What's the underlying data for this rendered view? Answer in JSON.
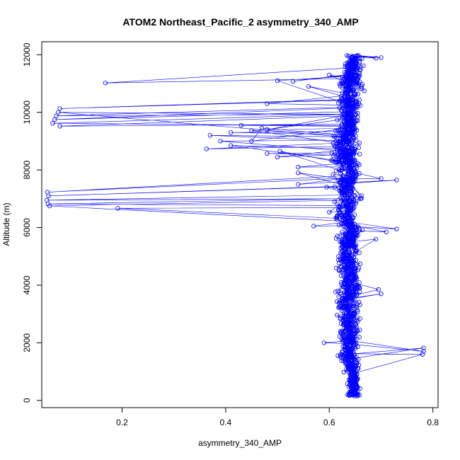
{
  "chart_data": {
    "type": "scatter",
    "title": "ATOM2 Northeast_Pacific_2 asymmetry_340_AMP",
    "xlabel": "asymmetry_340_AMP",
    "ylabel": "Altitude (m)",
    "xlim": [
      0.045,
      0.81
    ],
    "ylim": [
      -250,
      12450
    ],
    "xticks": [
      0.2,
      0.4,
      0.6,
      0.8
    ],
    "xtick_labels": [
      "0.2",
      "0.4",
      "0.6",
      "0.8"
    ],
    "yticks": [
      0,
      2000,
      4000,
      6000,
      8000,
      10000,
      12000
    ],
    "ytick_labels": [
      "0",
      "2000",
      "4000",
      "6000",
      "8000",
      "10000",
      "12000"
    ],
    "grid": false,
    "legend": "none",
    "series_color": "#0000ff",
    "marker": "open-circle",
    "connected": true,
    "outliers": [
      {
        "x": 0.168,
        "y": 11020
      },
      {
        "x": 0.5,
        "y": 11100
      },
      {
        "x": 0.53,
        "y": 11080
      },
      {
        "x": 0.08,
        "y": 10130
      },
      {
        "x": 0.077,
        "y": 10000
      },
      {
        "x": 0.073,
        "y": 9880
      },
      {
        "x": 0.07,
        "y": 9750
      },
      {
        "x": 0.066,
        "y": 9620
      },
      {
        "x": 0.08,
        "y": 9520
      },
      {
        "x": 0.43,
        "y": 9550
      },
      {
        "x": 0.47,
        "y": 9450
      },
      {
        "x": 0.48,
        "y": 9400
      },
      {
        "x": 0.41,
        "y": 9300
      },
      {
        "x": 0.45,
        "y": 9370
      },
      {
        "x": 0.37,
        "y": 9200
      },
      {
        "x": 0.39,
        "y": 9000
      },
      {
        "x": 0.45,
        "y": 9000
      },
      {
        "x": 0.41,
        "y": 8850
      },
      {
        "x": 0.363,
        "y": 8730
      },
      {
        "x": 0.48,
        "y": 8570
      },
      {
        "x": 0.505,
        "y": 8650
      },
      {
        "x": 0.5,
        "y": 8450
      },
      {
        "x": 0.48,
        "y": 10300
      },
      {
        "x": 0.54,
        "y": 8100
      },
      {
        "x": 0.54,
        "y": 7900
      },
      {
        "x": 0.54,
        "y": 7500
      },
      {
        "x": 0.056,
        "y": 7230
      },
      {
        "x": 0.058,
        "y": 7100
      },
      {
        "x": 0.055,
        "y": 6950
      },
      {
        "x": 0.057,
        "y": 6820
      },
      {
        "x": 0.06,
        "y": 6750
      },
      {
        "x": 0.192,
        "y": 6670
      },
      {
        "x": 0.57,
        "y": 6050
      },
      {
        "x": 0.73,
        "y": 5950
      },
      {
        "x": 0.71,
        "y": 5850
      },
      {
        "x": 0.69,
        "y": 5600
      },
      {
        "x": 0.7,
        "y": 3700
      },
      {
        "x": 0.695,
        "y": 3850
      },
      {
        "x": 0.782,
        "y": 1820
      },
      {
        "x": 0.782,
        "y": 1700
      },
      {
        "x": 0.78,
        "y": 1600
      },
      {
        "x": 0.59,
        "y": 2000
      },
      {
        "x": 0.73,
        "y": 7650
      },
      {
        "x": 0.7,
        "y": 7700
      },
      {
        "x": 0.7,
        "y": 11900
      },
      {
        "x": 0.69,
        "y": 11880
      },
      {
        "x": 0.6,
        "y": 11300
      },
      {
        "x": 0.56,
        "y": 10900
      }
    ],
    "dense_profile": {
      "description_levels": [
        {
          "y": 200,
          "x_mean": 0.645,
          "x_sd": 0.012
        },
        {
          "y": 600,
          "x_mean": 0.648,
          "x_sd": 0.012
        },
        {
          "y": 1000,
          "x_mean": 0.645,
          "x_sd": 0.014
        },
        {
          "y": 1500,
          "x_mean": 0.64,
          "x_sd": 0.018
        },
        {
          "y": 2000,
          "x_mean": 0.64,
          "x_sd": 0.02
        },
        {
          "y": 2500,
          "x_mean": 0.637,
          "x_sd": 0.018
        },
        {
          "y": 3000,
          "x_mean": 0.64,
          "x_sd": 0.02
        },
        {
          "y": 3500,
          "x_mean": 0.638,
          "x_sd": 0.022
        },
        {
          "y": 4000,
          "x_mean": 0.64,
          "x_sd": 0.022
        },
        {
          "y": 4500,
          "x_mean": 0.638,
          "x_sd": 0.02
        },
        {
          "y": 5000,
          "x_mean": 0.637,
          "x_sd": 0.02
        },
        {
          "y": 5500,
          "x_mean": 0.638,
          "x_sd": 0.02
        },
        {
          "y": 6000,
          "x_mean": 0.64,
          "x_sd": 0.022
        },
        {
          "y": 6500,
          "x_mean": 0.632,
          "x_sd": 0.022
        },
        {
          "y": 7000,
          "x_mean": 0.635,
          "x_sd": 0.025
        },
        {
          "y": 7500,
          "x_mean": 0.632,
          "x_sd": 0.025
        },
        {
          "y": 8000,
          "x_mean": 0.635,
          "x_sd": 0.025
        },
        {
          "y": 8500,
          "x_mean": 0.63,
          "x_sd": 0.025
        },
        {
          "y": 9000,
          "x_mean": 0.63,
          "x_sd": 0.025
        },
        {
          "y": 9500,
          "x_mean": 0.64,
          "x_sd": 0.02
        },
        {
          "y": 10000,
          "x_mean": 0.64,
          "x_sd": 0.02
        },
        {
          "y": 10500,
          "x_mean": 0.64,
          "x_sd": 0.022
        },
        {
          "y": 11000,
          "x_mean": 0.64,
          "x_sd": 0.022
        },
        {
          "y": 11500,
          "x_mean": 0.645,
          "x_sd": 0.02
        },
        {
          "y": 11950,
          "x_mean": 0.65,
          "x_sd": 0.015
        }
      ],
      "approx_point_count": 1400
    }
  }
}
